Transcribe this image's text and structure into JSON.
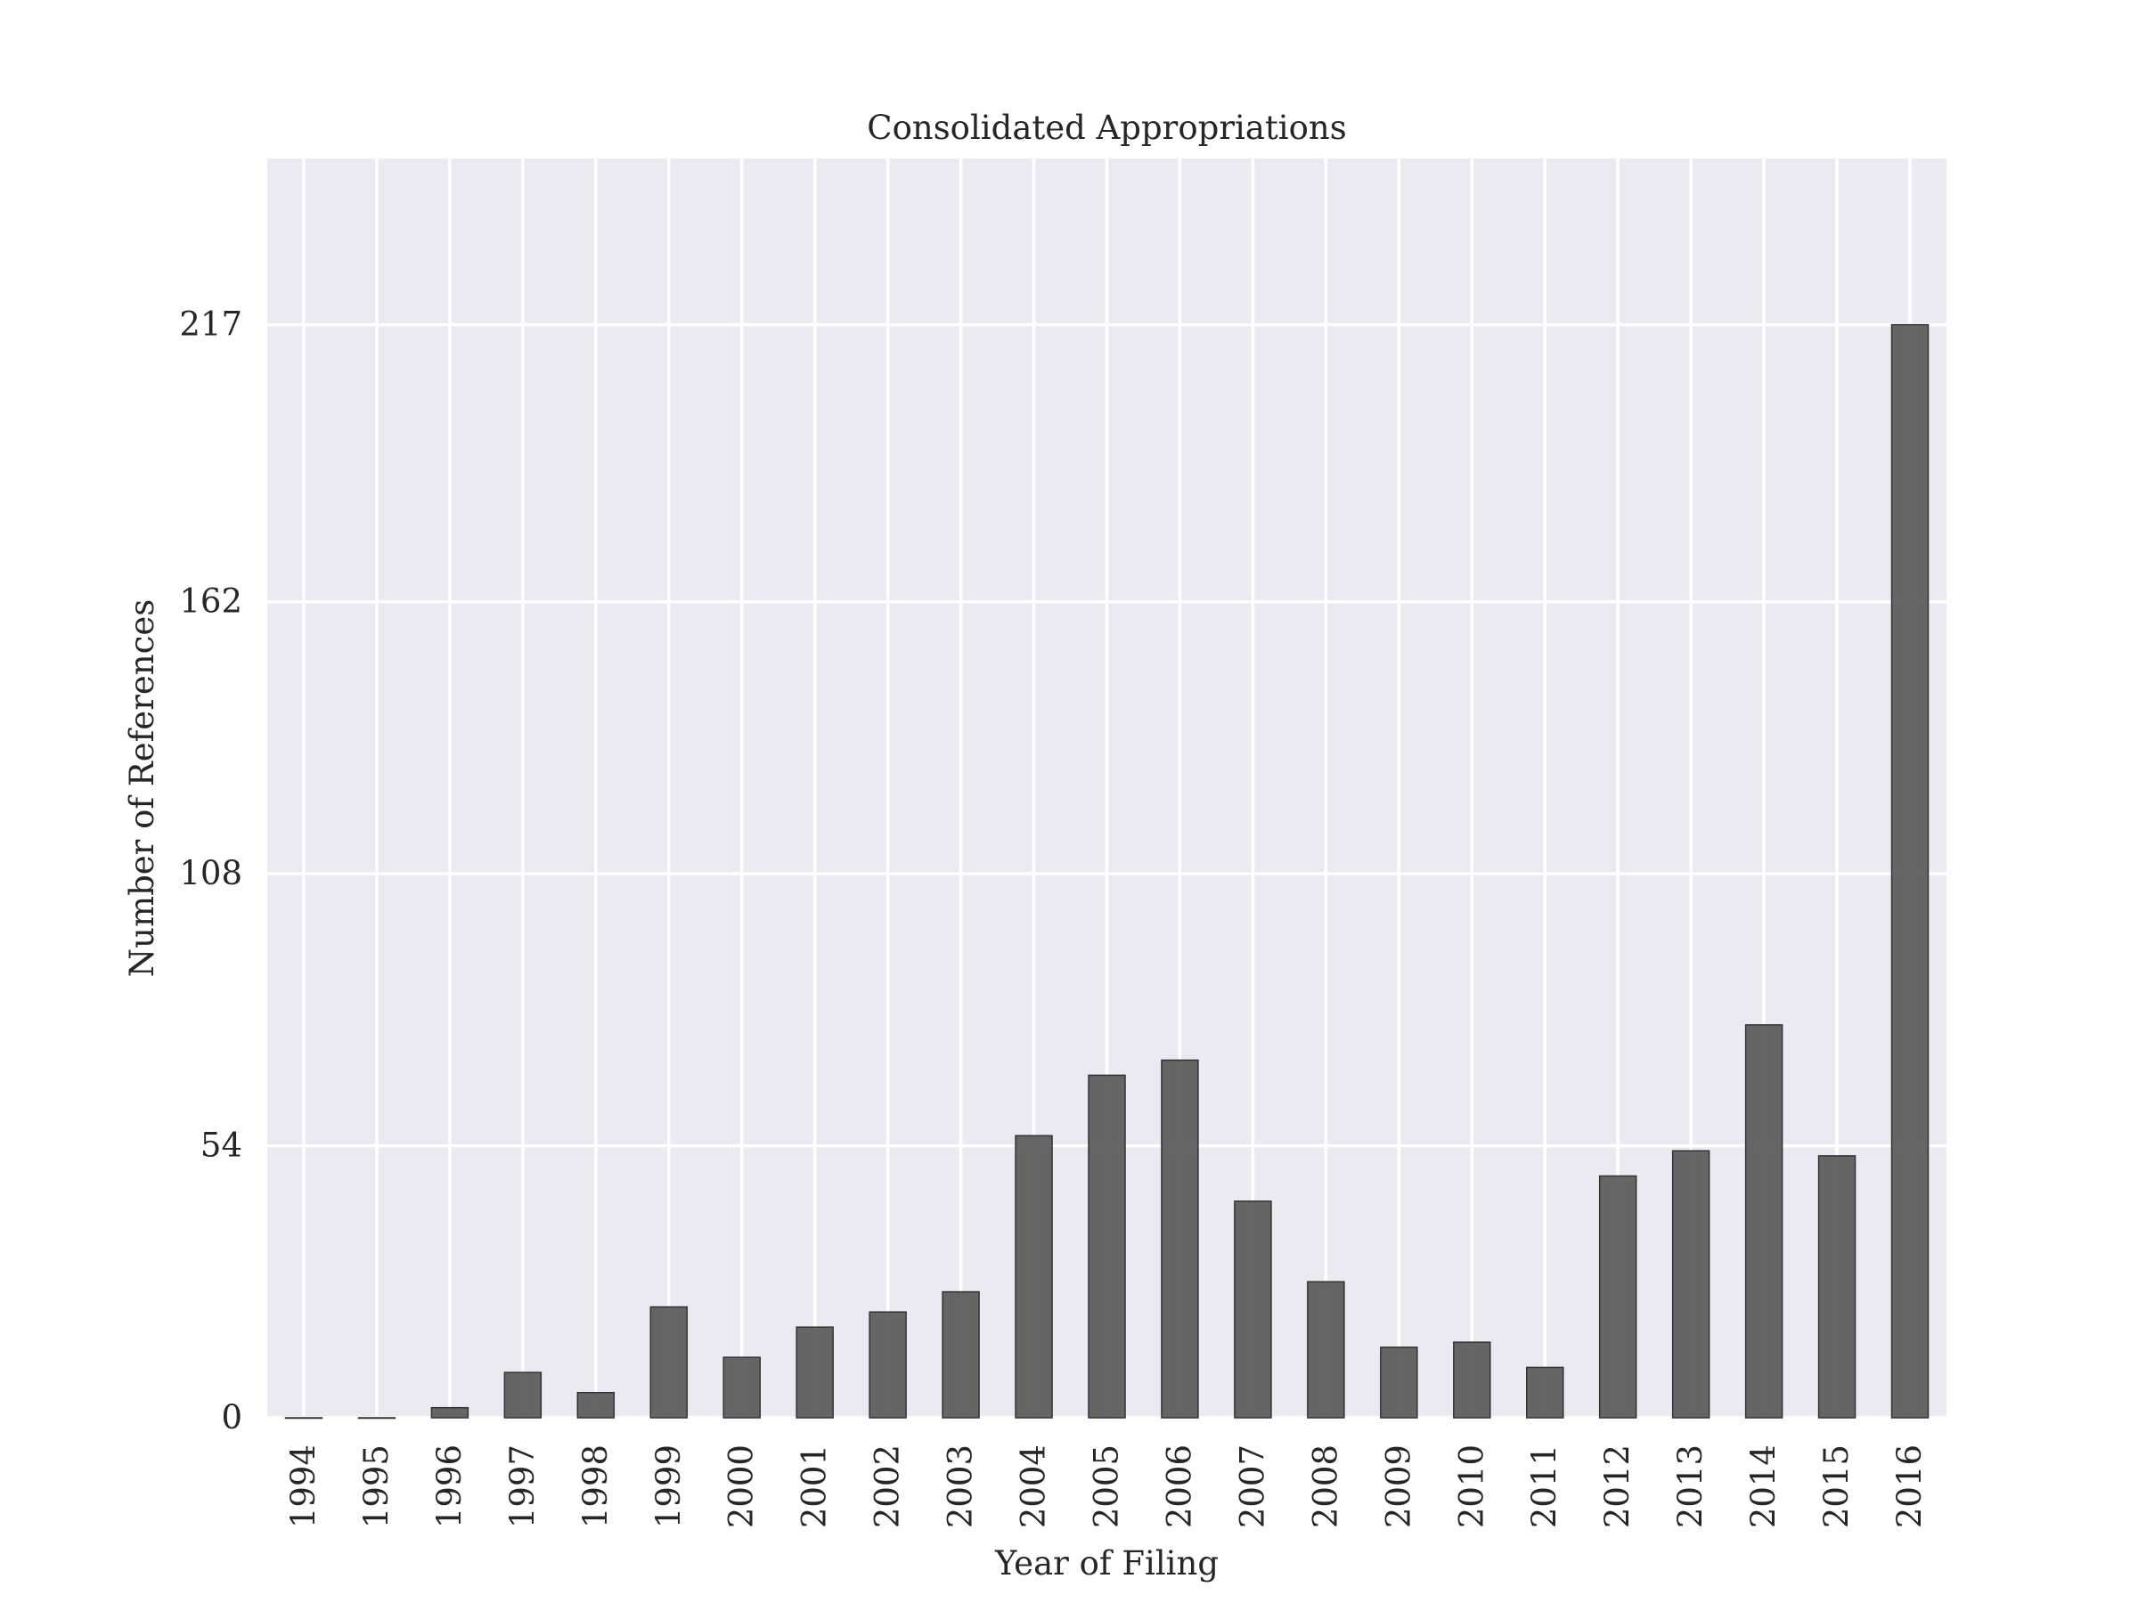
{
  "chart_data": {
    "type": "bar",
    "title": "Consolidated Appropriations",
    "xlabel": "Year of Filing",
    "ylabel": "Number of References",
    "categories": [
      "1994",
      "1995",
      "1996",
      "1997",
      "1998",
      "1999",
      "2000",
      "2001",
      "2002",
      "2003",
      "2004",
      "2005",
      "2006",
      "2007",
      "2008",
      "2009",
      "2010",
      "2011",
      "2012",
      "2013",
      "2014",
      "2015",
      "2016"
    ],
    "values": [
      0,
      0,
      2,
      9,
      5,
      22,
      12,
      18,
      21,
      25,
      56,
      68,
      71,
      43,
      27,
      14,
      15,
      10,
      48,
      53,
      78,
      52,
      217
    ],
    "yticks": [
      0,
      54,
      108,
      162,
      217
    ],
    "ytick_labels": [
      "0",
      "54",
      "108",
      "162",
      "217"
    ],
    "ylim": [
      0,
      250
    ],
    "grid": true,
    "colors": {
      "background": "#eaeaf2",
      "grid": "#ffffff",
      "bar": "#595959",
      "text": "#262626"
    }
  }
}
